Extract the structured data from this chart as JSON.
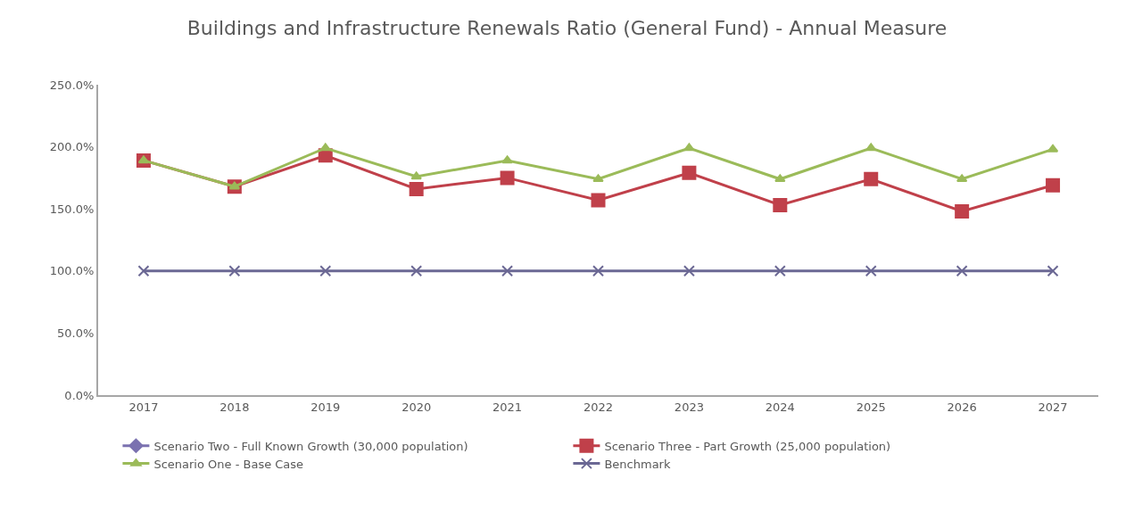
{
  "chart_data": {
    "type": "line",
    "title": "Buildings and Infrastructure Renewals Ratio (General Fund) - Annual Measure",
    "categories": [
      "2017",
      "2018",
      "2019",
      "2020",
      "2021",
      "2022",
      "2023",
      "2024",
      "2025",
      "2026",
      "2027"
    ],
    "series": [
      {
        "name": "Scenario Two - Full Known Growth (30,000 population)",
        "color": "#7b72b0",
        "marker": "diamond",
        "values": [
          null,
          null,
          null,
          null,
          null,
          null,
          null,
          null,
          null,
          null,
          null
        ]
      },
      {
        "name": "Scenario Three - Part Growth (25,000 population)",
        "color": "#c0404a",
        "marker": "square",
        "values": [
          189,
          168,
          193,
          166,
          175,
          157,
          179,
          153,
          174,
          148,
          169
        ]
      },
      {
        "name": "Scenario One - Base Case",
        "color": "#9bbb59",
        "marker": "triangle",
        "values": [
          189,
          168,
          199,
          176,
          189,
          174,
          199,
          174,
          199,
          174,
          198
        ]
      },
      {
        "name": "Benchmark",
        "color": "#6b6894",
        "marker": "cross",
        "values": [
          100,
          100,
          100,
          100,
          100,
          100,
          100,
          100,
          100,
          100,
          100
        ]
      }
    ],
    "ylim": [
      0,
      250
    ],
    "yticks": [
      {
        "value": 0,
        "label": "0.0%"
      },
      {
        "value": 50,
        "label": "50.0%"
      },
      {
        "value": 100,
        "label": "100.0%"
      },
      {
        "value": 150,
        "label": "150.0%"
      },
      {
        "value": 200,
        "label": "200.0%"
      },
      {
        "value": 250,
        "label": "250.0%"
      }
    ],
    "legend": "bottom",
    "line_style": "solid"
  }
}
